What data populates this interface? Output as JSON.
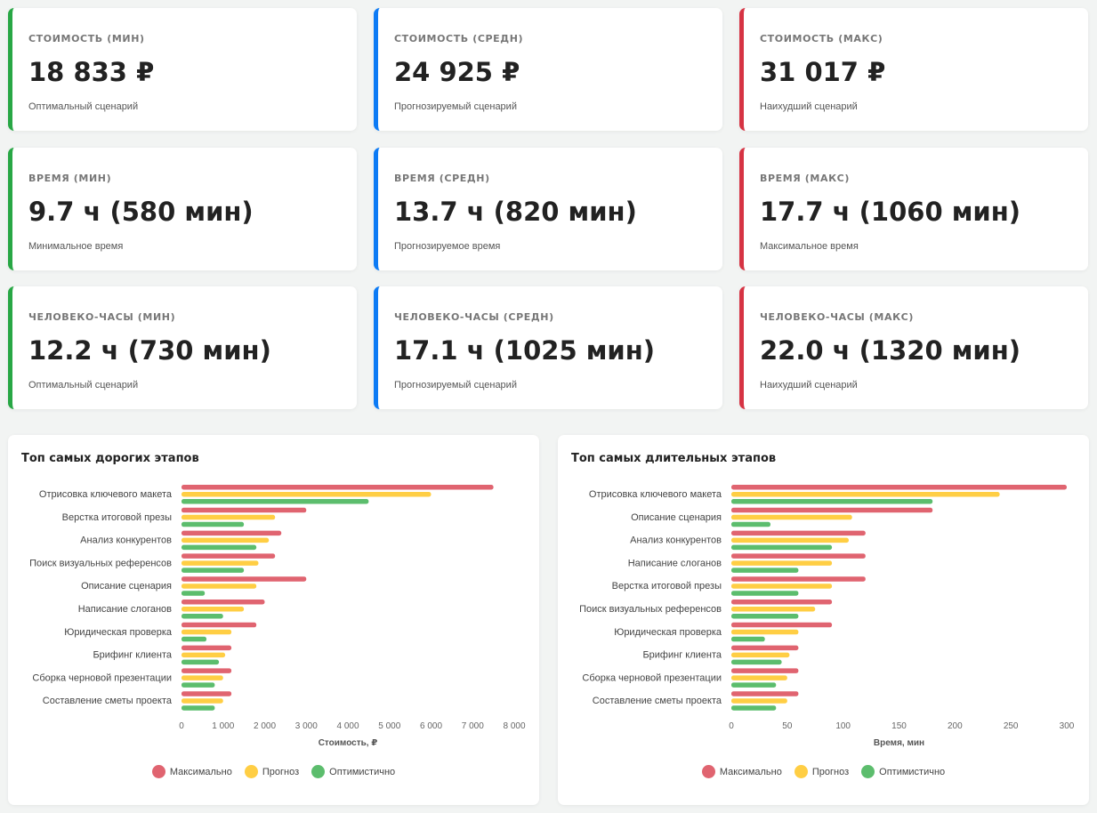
{
  "cards": [
    {
      "label": "СТОИМОСТЬ (МИН)",
      "value": "18 833 ₽",
      "sub": "Оптимальный сценарий",
      "tone": "green"
    },
    {
      "label": "СТОИМОСТЬ (СРЕДН)",
      "value": "24 925 ₽",
      "sub": "Прогнозируемый сценарий",
      "tone": "blue"
    },
    {
      "label": "СТОИМОСТЬ (МАКС)",
      "value": "31 017 ₽",
      "sub": "Наихудший сценарий",
      "tone": "red"
    },
    {
      "label": "ВРЕМЯ (МИН)",
      "value": "9.7 ч (580 мин)",
      "sub": "Минимальное время",
      "tone": "green"
    },
    {
      "label": "ВРЕМЯ (СРЕДН)",
      "value": "13.7 ч (820 мин)",
      "sub": "Прогнозируемое время",
      "tone": "blue"
    },
    {
      "label": "ВРЕМЯ (МАКС)",
      "value": "17.7 ч (1060 мин)",
      "sub": "Максимальное время",
      "tone": "red"
    },
    {
      "label": "ЧЕЛОВЕКО-ЧАСЫ (МИН)",
      "value": "12.2 ч (730 мин)",
      "sub": "Оптимальный сценарий",
      "tone": "green"
    },
    {
      "label": "ЧЕЛОВЕКО-ЧАСЫ (СРЕДН)",
      "value": "17.1 ч (1025 мин)",
      "sub": "Прогнозируемый сценарий",
      "tone": "blue"
    },
    {
      "label": "ЧЕЛОВЕКО-ЧАСЫ (МАКС)",
      "value": "22.0 ч (1320 мин)",
      "sub": "Наихудший сценарий",
      "tone": "red"
    }
  ],
  "colors": {
    "green": "#28a745",
    "blue": "#0d7bf5",
    "red": "#d63343",
    "max": "#e06470",
    "forecast": "#ffce44",
    "optimistic": "#5cbd6d"
  },
  "chart_data": [
    {
      "type": "bar",
      "orientation": "horizontal",
      "title": "Топ самых дорогих этапов",
      "xlabel": "Стоимость, ₽",
      "xlim": [
        0,
        8000
      ],
      "ticks": [
        "0",
        "1 000",
        "2 000",
        "3 000",
        "4 000",
        "5 000",
        "6 000",
        "7 000",
        "8 000"
      ],
      "tick_values": [
        0,
        1000,
        2000,
        3000,
        4000,
        5000,
        6000,
        7000,
        8000
      ],
      "legend": "bottom",
      "grid": true,
      "categories": [
        "Отрисовка ключевого макета",
        "Верстка итоговой презы",
        "Анализ конкурентов",
        "Поиск визуальных референсов",
        "Описание сценария",
        "Написание слоганов",
        "Юридическая проверка",
        "Брифинг клиента",
        "Сборка черновой презентации",
        "Составление сметы проекта"
      ],
      "series": [
        {
          "name": "Максимально",
          "color": "#e06470",
          "values": [
            7500,
            3000,
            2400,
            2250,
            3000,
            2000,
            1800,
            1200,
            1200,
            1200
          ]
        },
        {
          "name": "Прогноз",
          "color": "#ffce44",
          "values": [
            6000,
            2250,
            2100,
            1850,
            1800,
            1500,
            1200,
            1050,
            1000,
            1000
          ]
        },
        {
          "name": "Оптимистично",
          "color": "#5cbd6d",
          "values": [
            4500,
            1500,
            1800,
            1500,
            560,
            1000,
            600,
            900,
            800,
            800
          ]
        }
      ]
    },
    {
      "type": "bar",
      "orientation": "horizontal",
      "title": "Топ самых длительных этапов",
      "xlabel": "Время, мин",
      "xlim": [
        0,
        300
      ],
      "ticks": [
        "0",
        "50",
        "100",
        "150",
        "200",
        "250",
        "300"
      ],
      "tick_values": [
        0,
        50,
        100,
        150,
        200,
        250,
        300
      ],
      "legend": "bottom",
      "grid": true,
      "categories": [
        "Отрисовка ключевого макета",
        "Описание сценария",
        "Анализ конкурентов",
        "Написание слоганов",
        "Верстка итоговой презы",
        "Поиск визуальных референсов",
        "Юридическая проверка",
        "Брифинг клиента",
        "Сборка черновой презентации",
        "Составление сметы проекта"
      ],
      "series": [
        {
          "name": "Максимально",
          "color": "#e06470",
          "values": [
            300,
            180,
            120,
            120,
            120,
            90,
            90,
            60,
            60,
            60
          ]
        },
        {
          "name": "Прогноз",
          "color": "#ffce44",
          "values": [
            240,
            108,
            105,
            90,
            90,
            75,
            60,
            52,
            50,
            50
          ]
        },
        {
          "name": "Оптимистично",
          "color": "#5cbd6d",
          "values": [
            180,
            35,
            90,
            60,
            60,
            60,
            30,
            45,
            40,
            40
          ]
        }
      ]
    }
  ]
}
